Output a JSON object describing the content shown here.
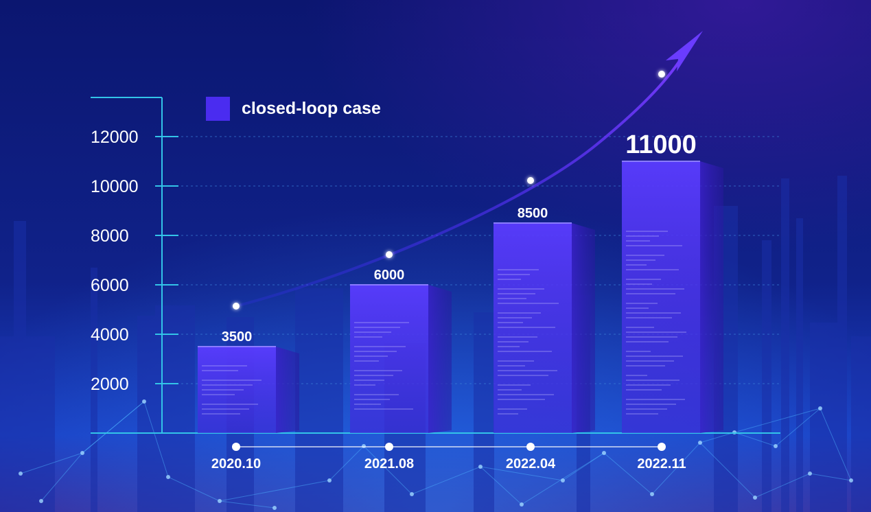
{
  "chart_data": {
    "type": "bar",
    "categories": [
      "2020.10",
      "2021.08",
      "2022.04",
      "2022.11"
    ],
    "series": [
      {
        "name": "closed-loop case",
        "values": [
          3500,
          6000,
          8500,
          11000
        ]
      }
    ],
    "value_labels": [
      "3500",
      "6000",
      "8500",
      "11000"
    ],
    "yticks": [
      2000,
      4000,
      6000,
      8000,
      10000,
      12000
    ],
    "ytick_labels": [
      "2000",
      "4000",
      "6000",
      "8000",
      "10000",
      "12000"
    ],
    "ylim": [
      0,
      13000
    ],
    "grid": true,
    "legend": "top-left",
    "trend_arrow": true,
    "colors": {
      "background_top": "#0b1670",
      "background_bottom": "#1f4bd6",
      "bar": "#4a2cf0",
      "bar_side": "#3a1fc8",
      "axis": "#33c4e8",
      "grid": "#3a7fd8",
      "trend": "#6a3cff",
      "text": "#ffffff"
    }
  }
}
